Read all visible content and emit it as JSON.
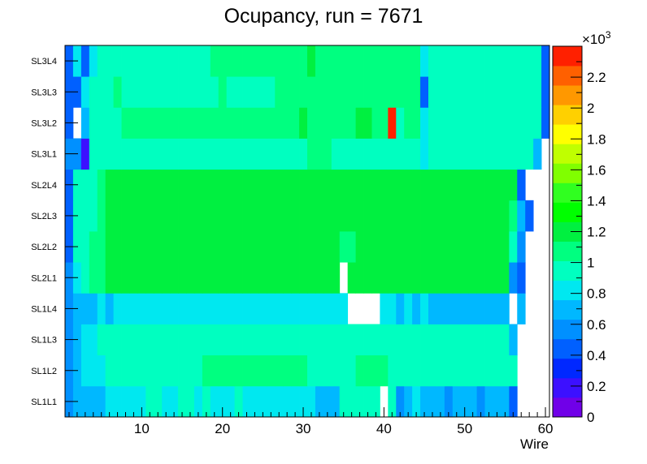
{
  "chart_data": {
    "type": "heatmap",
    "title": "Ocupancy, run = 7671",
    "xlabel": "Wire",
    "ylabel": "",
    "xlim": [
      0.5,
      60.5
    ],
    "x_ticks": [
      10,
      20,
      30,
      40,
      50,
      60
    ],
    "y_categories": [
      "SL1L1",
      "SL1L2",
      "SL1L3",
      "SL1L4",
      "SL2L1",
      "SL2L2",
      "SL2L3",
      "SL2L4",
      "SL3L1",
      "SL3L2",
      "SL3L3",
      "SL3L4"
    ],
    "z_range": [
      0,
      2400
    ],
    "z_multiplier_label": "×10",
    "z_multiplier_exp": "3",
    "z_ticks": [
      0,
      0.2,
      0.4,
      0.6,
      0.8,
      1,
      1.2,
      1.4,
      1.6,
      1.8,
      2,
      2.2
    ],
    "rows": [
      [
        550,
        650,
        720,
        720,
        720,
        880,
        880,
        880,
        860,
        840,
        900,
        900,
        880,
        880,
        900,
        900,
        880,
        900,
        880,
        880,
        880,
        900,
        880,
        880,
        880,
        880,
        880,
        880,
        860,
        860,
        880,
        700,
        750,
        720,
        940,
        940,
        940,
        940,
        940,
        0,
        960,
        620,
        740,
        760,
        700,
        720,
        700,
        620,
        700,
        700,
        700,
        550,
        650,
        650,
        650,
        500,
        0,
        0,
        0,
        0
      ],
      [
        550,
        640,
        860,
        860,
        860,
        900,
        960,
        960,
        960,
        960,
        960,
        960,
        960,
        960,
        960,
        960,
        960,
        1040,
        1040,
        1040,
        1040,
        1040,
        1040,
        1040,
        1040,
        1040,
        1040,
        1040,
        1040,
        1040,
        960,
        960,
        960,
        940,
        940,
        940,
        1040,
        1040,
        1040,
        1040,
        940,
        940,
        900,
        960,
        960,
        960,
        960,
        960,
        960,
        960,
        960,
        960,
        960,
        960,
        960,
        960,
        0,
        0,
        0,
        0
      ],
      [
        550,
        700,
        800,
        880,
        900,
        960,
        940,
        960,
        940,
        960,
        940,
        960,
        960,
        940,
        940,
        960,
        960,
        960,
        940,
        940,
        940,
        940,
        940,
        940,
        940,
        940,
        940,
        940,
        940,
        940,
        940,
        940,
        960,
        960,
        960,
        920,
        920,
        960,
        960,
        960,
        960,
        960,
        960,
        960,
        960,
        960,
        960,
        960,
        960,
        960,
        960,
        960,
        960,
        960,
        960,
        700,
        0,
        0,
        0,
        0
      ],
      [
        550,
        650,
        700,
        740,
        760,
        700,
        780,
        800,
        860,
        860,
        860,
        860,
        860,
        820,
        820,
        860,
        860,
        860,
        860,
        860,
        860,
        880,
        880,
        860,
        860,
        860,
        860,
        860,
        860,
        860,
        860,
        860,
        860,
        860,
        860,
        0,
        0,
        0,
        0,
        840,
        840,
        720,
        760,
        700,
        760,
        700,
        700,
        700,
        700,
        700,
        700,
        700,
        700,
        700,
        700,
        0,
        700,
        0,
        0,
        0
      ],
      [
        620,
        780,
        1000,
        1080,
        1100,
        1140,
        1140,
        1200,
        1200,
        1200,
        1200,
        1200,
        1200,
        1180,
        1200,
        1200,
        1200,
        1200,
        1200,
        1200,
        1200,
        1200,
        1220,
        1200,
        1200,
        1200,
        1200,
        1200,
        1220,
        1220,
        1220,
        1200,
        1200,
        1140,
        0,
        1200,
        1200,
        1200,
        1200,
        1200,
        1200,
        1200,
        1200,
        1200,
        1200,
        1200,
        1200,
        1200,
        1160,
        1160,
        1160,
        1160,
        1160,
        1160,
        1160,
        620,
        400,
        0,
        0,
        0
      ],
      [
        500,
        900,
        1000,
        1080,
        1100,
        1140,
        1160,
        1160,
        1200,
        1200,
        1200,
        1200,
        1160,
        1180,
        1180,
        1220,
        1220,
        1220,
        1220,
        1220,
        1180,
        1180,
        1180,
        1180,
        1180,
        1180,
        1180,
        1180,
        1180,
        1180,
        1180,
        1180,
        1180,
        1180,
        1100,
        1100,
        1200,
        1200,
        1200,
        1200,
        1200,
        1200,
        1200,
        1200,
        1200,
        1200,
        1200,
        1200,
        1200,
        1200,
        1200,
        1200,
        1180,
        1180,
        1140,
        1000,
        620,
        0,
        0,
        0
      ],
      [
        500,
        900,
        960,
        1000,
        1100,
        1140,
        1200,
        1200,
        1200,
        1200,
        1200,
        1200,
        1200,
        1200,
        1180,
        1200,
        1200,
        1200,
        1200,
        1200,
        1200,
        1200,
        1200,
        1160,
        1200,
        1160,
        1160,
        1160,
        1160,
        1200,
        1200,
        1200,
        1180,
        1180,
        1180,
        1200,
        1200,
        1200,
        1200,
        1200,
        1200,
        1200,
        1200,
        1200,
        1200,
        1200,
        1200,
        1200,
        1200,
        1200,
        1200,
        1200,
        1160,
        1160,
        1160,
        1100,
        640,
        500,
        0,
        0
      ],
      [
        500,
        900,
        960,
        1000,
        1100,
        1140,
        1200,
        1200,
        1200,
        1200,
        1200,
        1200,
        1200,
        1200,
        1240,
        1200,
        1200,
        1200,
        1200,
        1200,
        1200,
        1200,
        1200,
        1200,
        1160,
        1200,
        1200,
        1240,
        1240,
        1200,
        1200,
        1200,
        1200,
        1160,
        1180,
        1180,
        1200,
        1200,
        1200,
        1200,
        1200,
        1200,
        1200,
        1200,
        1200,
        1200,
        1200,
        1200,
        1200,
        1200,
        1200,
        1200,
        1200,
        1200,
        1200,
        1140,
        500,
        0,
        0,
        0
      ],
      [
        600,
        520,
        200,
        960,
        1000,
        1000,
        960,
        960,
        960,
        960,
        960,
        960,
        960,
        1000,
        1000,
        1000,
        1000,
        1000,
        1000,
        1000,
        1000,
        1000,
        1000,
        1000,
        1000,
        1000,
        1000,
        1000,
        1000,
        1000,
        1060,
        1100,
        1100,
        960,
        960,
        960,
        1000,
        1000,
        1000,
        1000,
        1000,
        960,
        960,
        960,
        760,
        1000,
        1000,
        960,
        960,
        960,
        960,
        960,
        960,
        960,
        960,
        960,
        960,
        960,
        700,
        0
      ],
      [
        500,
        0,
        700,
        1000,
        1000,
        960,
        1000,
        1080,
        1100,
        1100,
        1100,
        1100,
        1100,
        1100,
        1100,
        1100,
        1100,
        1100,
        1100,
        1100,
        1100,
        1100,
        1100,
        1100,
        1100,
        1100,
        1100,
        1100,
        1100,
        1200,
        1100,
        1100,
        1100,
        1100,
        1100,
        1100,
        1200,
        1200,
        1100,
        1100,
        2350,
        1000,
        1100,
        1100,
        880,
        1000,
        1000,
        1000,
        900,
        1000,
        1000,
        1000,
        1000,
        1000,
        1000,
        1000,
        1000,
        1000,
        1000,
        500
      ],
      [
        400,
        500,
        800,
        1000,
        1000,
        960,
        1100,
        1000,
        1000,
        960,
        1000,
        1000,
        960,
        960,
        1000,
        960,
        1000,
        1000,
        1000,
        1100,
        1000,
        1000,
        1000,
        1000,
        1000,
        1000,
        1100,
        1100,
        1100,
        1100,
        1100,
        1100,
        1100,
        1100,
        1100,
        1100,
        1100,
        1100,
        1100,
        1100,
        1100,
        1100,
        1100,
        1100,
        500,
        900,
        900,
        900,
        1000,
        1000,
        1000,
        1000,
        1000,
        1000,
        1000,
        1000,
        1000,
        1000,
        1000,
        500
      ],
      [
        500,
        800,
        500,
        800,
        960,
        960,
        960,
        960,
        960,
        1000,
        1000,
        1000,
        1000,
        1000,
        1000,
        1000,
        1000,
        1000,
        1100,
        1100,
        1100,
        1100,
        1100,
        1100,
        1100,
        1100,
        1100,
        1100,
        1100,
        1100,
        1140,
        1100,
        1100,
        1100,
        1100,
        1100,
        1100,
        1100,
        1100,
        1100,
        1100,
        1100,
        1100,
        1100,
        800,
        960,
        960,
        900,
        960,
        960,
        960,
        960,
        960,
        960,
        960,
        960,
        960,
        960,
        960,
        500
      ]
    ]
  }
}
